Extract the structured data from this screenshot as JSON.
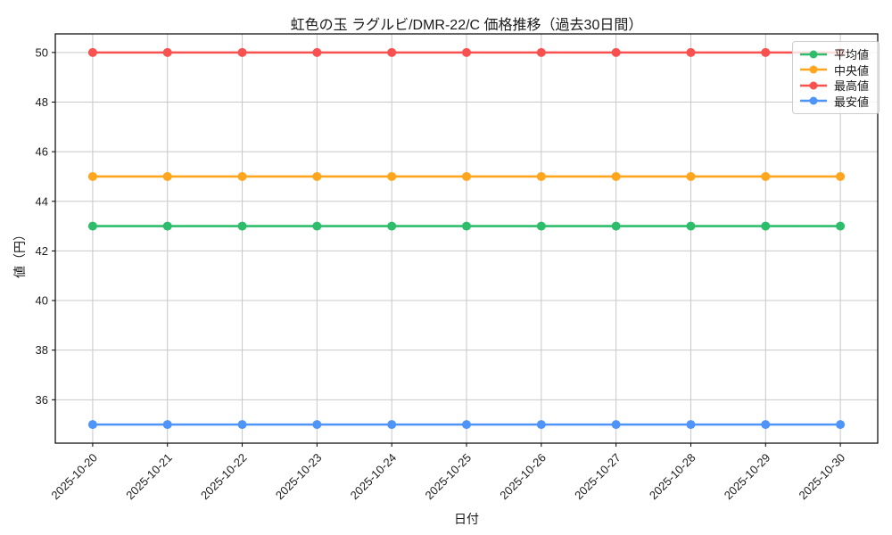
{
  "chart_data": {
    "type": "line",
    "title": "虹色の玉 ラグルビ/DMR-22/C 価格推移（過去30日間）",
    "xlabel": "日付",
    "ylabel": "値（円）",
    "categories": [
      "2025-10-20",
      "2025-10-21",
      "2025-10-22",
      "2025-10-23",
      "2025-10-24",
      "2025-10-25",
      "2025-10-26",
      "2025-10-27",
      "2025-10-28",
      "2025-10-29",
      "2025-10-30"
    ],
    "yticks": [
      36,
      38,
      40,
      42,
      44,
      46,
      48,
      50
    ],
    "ylim": [
      34.25,
      50.75
    ],
    "grid": true,
    "grid_color": "#c8c8c8",
    "spine_color": "#000000",
    "legend_position": "upper right",
    "series": [
      {
        "name": "平均値",
        "color": "#2ebd6b",
        "values": [
          43,
          43,
          43,
          43,
          43,
          43,
          43,
          43,
          43,
          43,
          43
        ]
      },
      {
        "name": "中央値",
        "color": "#ffa51e",
        "values": [
          45,
          45,
          45,
          45,
          45,
          45,
          45,
          45,
          45,
          45,
          45
        ]
      },
      {
        "name": "最高値",
        "color": "#f8514f",
        "values": [
          50,
          50,
          50,
          50,
          50,
          50,
          50,
          50,
          50,
          50,
          50
        ]
      },
      {
        "name": "最安値",
        "color": "#4f94f8",
        "values": [
          35,
          35,
          35,
          35,
          35,
          35,
          35,
          35,
          35,
          35,
          35
        ]
      }
    ]
  }
}
